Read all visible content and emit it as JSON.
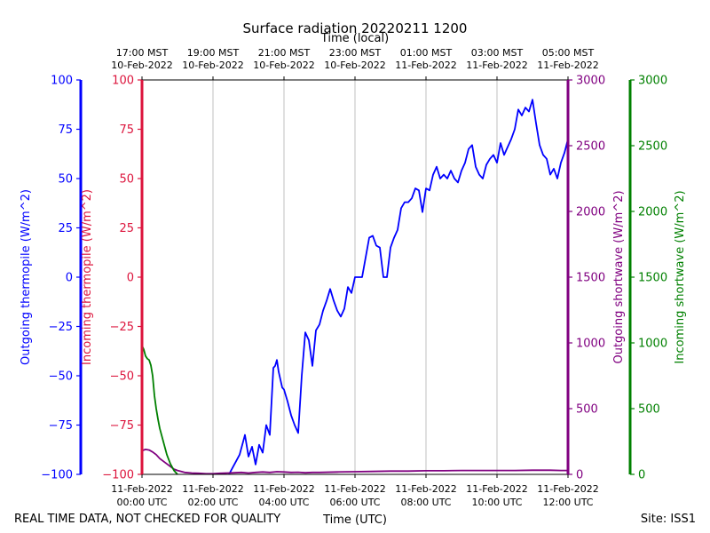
{
  "chart_data": {
    "type": "line",
    "title": "Surface radiation 20220211 1200",
    "top_axis_label": "Time (local)",
    "xlabel": "Time (UTC)",
    "footer_left": "REAL TIME DATA, NOT CHECKED FOR QUALITY",
    "footer_right": "Site: ISS1",
    "x_unit": "hours since 11-Feb-2022 00:00 UTC",
    "xlim": [
      0,
      12
    ],
    "grid": "vertical",
    "x_ticks": [
      {
        "x": 0,
        "utc_date": "11-Feb-2022",
        "utc_time": "00:00 UTC",
        "local_time": "17:00 MST",
        "local_date": "10-Feb-2022"
      },
      {
        "x": 2,
        "utc_date": "11-Feb-2022",
        "utc_time": "02:00 UTC",
        "local_time": "19:00 MST",
        "local_date": "10-Feb-2022"
      },
      {
        "x": 4,
        "utc_date": "11-Feb-2022",
        "utc_time": "04:00 UTC",
        "local_time": "21:00 MST",
        "local_date": "10-Feb-2022"
      },
      {
        "x": 6,
        "utc_date": "11-Feb-2022",
        "utc_time": "06:00 UTC",
        "local_time": "23:00 MST",
        "local_date": "10-Feb-2022"
      },
      {
        "x": 8,
        "utc_date": "11-Feb-2022",
        "utc_time": "08:00 UTC",
        "local_time": "01:00 MST",
        "local_date": "11-Feb-2022"
      },
      {
        "x": 10,
        "utc_date": "11-Feb-2022",
        "utc_time": "10:00 UTC",
        "local_time": "03:00 MST",
        "local_date": "11-Feb-2022"
      },
      {
        "x": 12,
        "utc_date": "11-Feb-2022",
        "utc_time": "12:00 UTC",
        "local_time": "05:00 MST",
        "local_date": "11-Feb-2022"
      }
    ],
    "y_axes": [
      {
        "key": "out_thermo",
        "label": "Outgoing thermopile (W/m^2)",
        "color": "#0000ff",
        "ylim": [
          -100,
          100
        ],
        "ticks": [
          -100,
          -75,
          -50,
          -25,
          0,
          25,
          50,
          75,
          100
        ]
      },
      {
        "key": "in_thermo",
        "label": "Incoming thermopile (W/m^2)",
        "color": "#dc143c",
        "ylim": [
          -100,
          100
        ],
        "ticks": [
          -100,
          -75,
          -50,
          -25,
          0,
          25,
          50,
          75,
          100
        ]
      },
      {
        "key": "out_sw",
        "label": "Outgoing shortwave (W/m^2)",
        "color": "#800080",
        "ylim": [
          0,
          3000
        ],
        "ticks": [
          0,
          500,
          1000,
          1500,
          2000,
          2500,
          3000
        ]
      },
      {
        "key": "in_sw",
        "label": "Incoming shortwave (W/m^2)",
        "color": "#008000",
        "ylim": [
          0,
          3000
        ],
        "ticks": [
          0,
          500,
          1000,
          1500,
          2000,
          2500,
          3000
        ]
      }
    ],
    "series": [
      {
        "name": "Outgoing thermopile",
        "axis": "out_thermo",
        "color": "#0000ff",
        "x": [
          2.45,
          2.6,
          2.75,
          2.9,
          3.0,
          3.1,
          3.2,
          3.3,
          3.4,
          3.5,
          3.6,
          3.7,
          3.75,
          3.8,
          3.85,
          3.9,
          3.95,
          4.0,
          4.1,
          4.2,
          4.3,
          4.4,
          4.5,
          4.6,
          4.7,
          4.8,
          4.9,
          5.0,
          5.1,
          5.2,
          5.3,
          5.4,
          5.5,
          5.6,
          5.7,
          5.8,
          5.9,
          6.0,
          6.1,
          6.2,
          6.3,
          6.4,
          6.5,
          6.6,
          6.7,
          6.8,
          6.9,
          7.0,
          7.1,
          7.2,
          7.3,
          7.4,
          7.5,
          7.6,
          7.7,
          7.8,
          7.9,
          8.0,
          8.1,
          8.2,
          8.3,
          8.4,
          8.5,
          8.6,
          8.7,
          8.8,
          8.9,
          9.0,
          9.1,
          9.2,
          9.3,
          9.4,
          9.5,
          9.6,
          9.7,
          9.8,
          9.9,
          10.0,
          10.1,
          10.2,
          10.3,
          10.4,
          10.5,
          10.6,
          10.7,
          10.8,
          10.9,
          11.0,
          11.1,
          11.2,
          11.3,
          11.4,
          11.5,
          11.6,
          11.7,
          11.8,
          11.9,
          12.0
        ],
        "y": [
          -100,
          -95,
          -90,
          -80,
          -91,
          -86,
          -95,
          -85,
          -89,
          -75,
          -80,
          -46,
          -45,
          -42,
          -48,
          -52,
          -56,
          -57,
          -63,
          -70,
          -75,
          -79,
          -50,
          -28,
          -32,
          -45,
          -27,
          -24,
          -17,
          -12,
          -6,
          -12,
          -17,
          -20,
          -16,
          -5,
          -8,
          0,
          0,
          0,
          10,
          20,
          21,
          16,
          15,
          0,
          0,
          15,
          20,
          24,
          35,
          38,
          38,
          40,
          45,
          44,
          33,
          45,
          44,
          52,
          56,
          50,
          52,
          50,
          54,
          50,
          48,
          54,
          58,
          65,
          67,
          56,
          52,
          50,
          57,
          60,
          62,
          58,
          68,
          62,
          66,
          70,
          75,
          85,
          82,
          86,
          84,
          90,
          78,
          67,
          62,
          60,
          52,
          55,
          50,
          58,
          63,
          70
        ]
      },
      {
        "name": "Outgoing shortwave",
        "axis": "out_sw",
        "color": "#800080",
        "x": [
          0,
          0.1,
          0.2,
          0.3,
          0.4,
          0.5,
          0.6,
          0.7,
          0.8,
          0.9,
          1.0,
          1.2,
          1.4,
          1.6,
          1.8,
          2.0,
          2.2,
          2.4,
          2.6,
          2.8,
          3.0,
          3.2,
          3.4,
          3.6,
          3.8,
          4.0,
          4.2,
          4.4,
          4.6,
          4.8,
          5.0,
          5.5,
          6.0,
          6.5,
          7.0,
          7.5,
          8.0,
          8.5,
          9.0,
          9.5,
          10.0,
          10.5,
          11.0,
          11.5,
          11.8,
          12.0
        ],
        "y": [
          180,
          190,
          185,
          170,
          150,
          120,
          100,
          80,
          60,
          40,
          30,
          15,
          10,
          8,
          5,
          5,
          8,
          10,
          12,
          15,
          10,
          15,
          18,
          15,
          20,
          18,
          15,
          16,
          12,
          15,
          15,
          18,
          20,
          22,
          25,
          25,
          28,
          28,
          30,
          30,
          30,
          30,
          32,
          32,
          30,
          30
        ]
      },
      {
        "name": "Incoming shortwave",
        "axis": "in_sw",
        "color": "#008000",
        "x": [
          0,
          0.05,
          0.1,
          0.15,
          0.2,
          0.25,
          0.3,
          0.35,
          0.4,
          0.45,
          0.5,
          0.6,
          0.7,
          0.8,
          0.9,
          1.0
        ],
        "y": [
          980,
          950,
          900,
          880,
          870,
          830,
          750,
          600,
          500,
          420,
          350,
          250,
          150,
          80,
          30,
          0
        ]
      }
    ]
  }
}
